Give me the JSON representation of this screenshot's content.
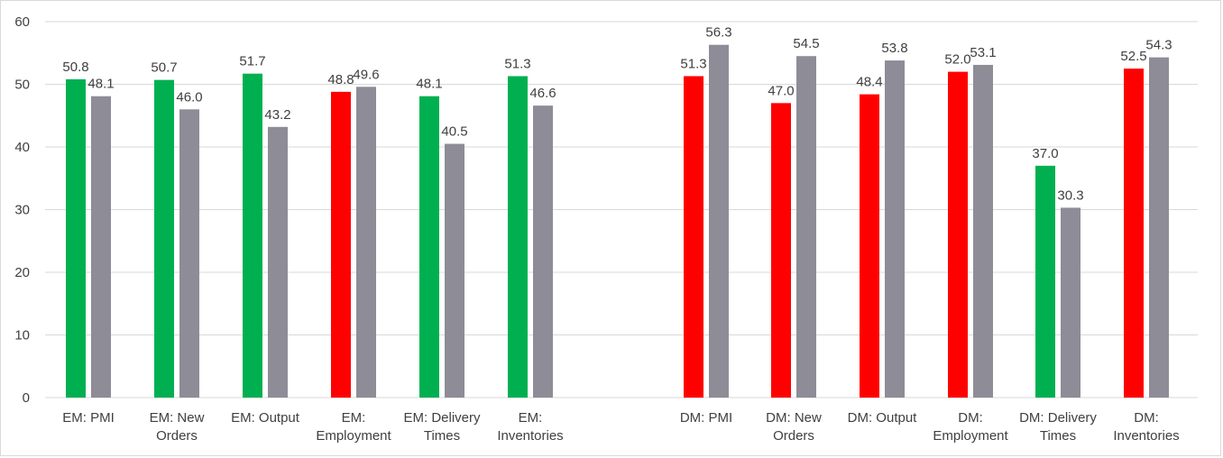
{
  "chart_data": {
    "type": "bar",
    "title": "",
    "xlabel": "",
    "ylabel": "",
    "ylim": [
      0,
      60
    ],
    "yticks": [
      0,
      10,
      20,
      30,
      40,
      50,
      60
    ],
    "grid": true,
    "legend": "none",
    "colors": {
      "up": "#00b050",
      "down": "#ff0000",
      "prior": "#8e8c97",
      "grid": "#d9d9d9"
    },
    "categories": [
      [
        "EM: PMI"
      ],
      [
        "EM: New",
        "Orders"
      ],
      [
        "EM: Output"
      ],
      [
        "EM:",
        "Employment"
      ],
      [
        "EM: Delivery",
        "Times"
      ],
      [
        "EM:",
        "Inventories"
      ],
      [
        "DM: PMI"
      ],
      [
        "DM: New",
        "Orders"
      ],
      [
        "DM: Output"
      ],
      [
        "DM:",
        "Employment"
      ],
      [
        "DM: Delivery",
        "Times"
      ],
      [
        "DM:",
        "Inventories"
      ]
    ],
    "series": [
      {
        "values": [
          50.8,
          50.7,
          51.7,
          48.8,
          48.1,
          51.3,
          51.3,
          47.0,
          48.4,
          52.0,
          37.0,
          52.5
        ],
        "bar_colors": [
          "up",
          "up",
          "up",
          "down",
          "up",
          "up",
          "down",
          "down",
          "down",
          "down",
          "up",
          "down"
        ]
      },
      {
        "values": [
          48.1,
          46.0,
          43.2,
          49.6,
          40.5,
          46.6,
          56.3,
          54.5,
          53.8,
          53.1,
          30.3,
          54.3
        ],
        "bar_colors": [
          "prior",
          "prior",
          "prior",
          "prior",
          "prior",
          "prior",
          "prior",
          "prior",
          "prior",
          "prior",
          "prior",
          "prior"
        ]
      }
    ]
  }
}
